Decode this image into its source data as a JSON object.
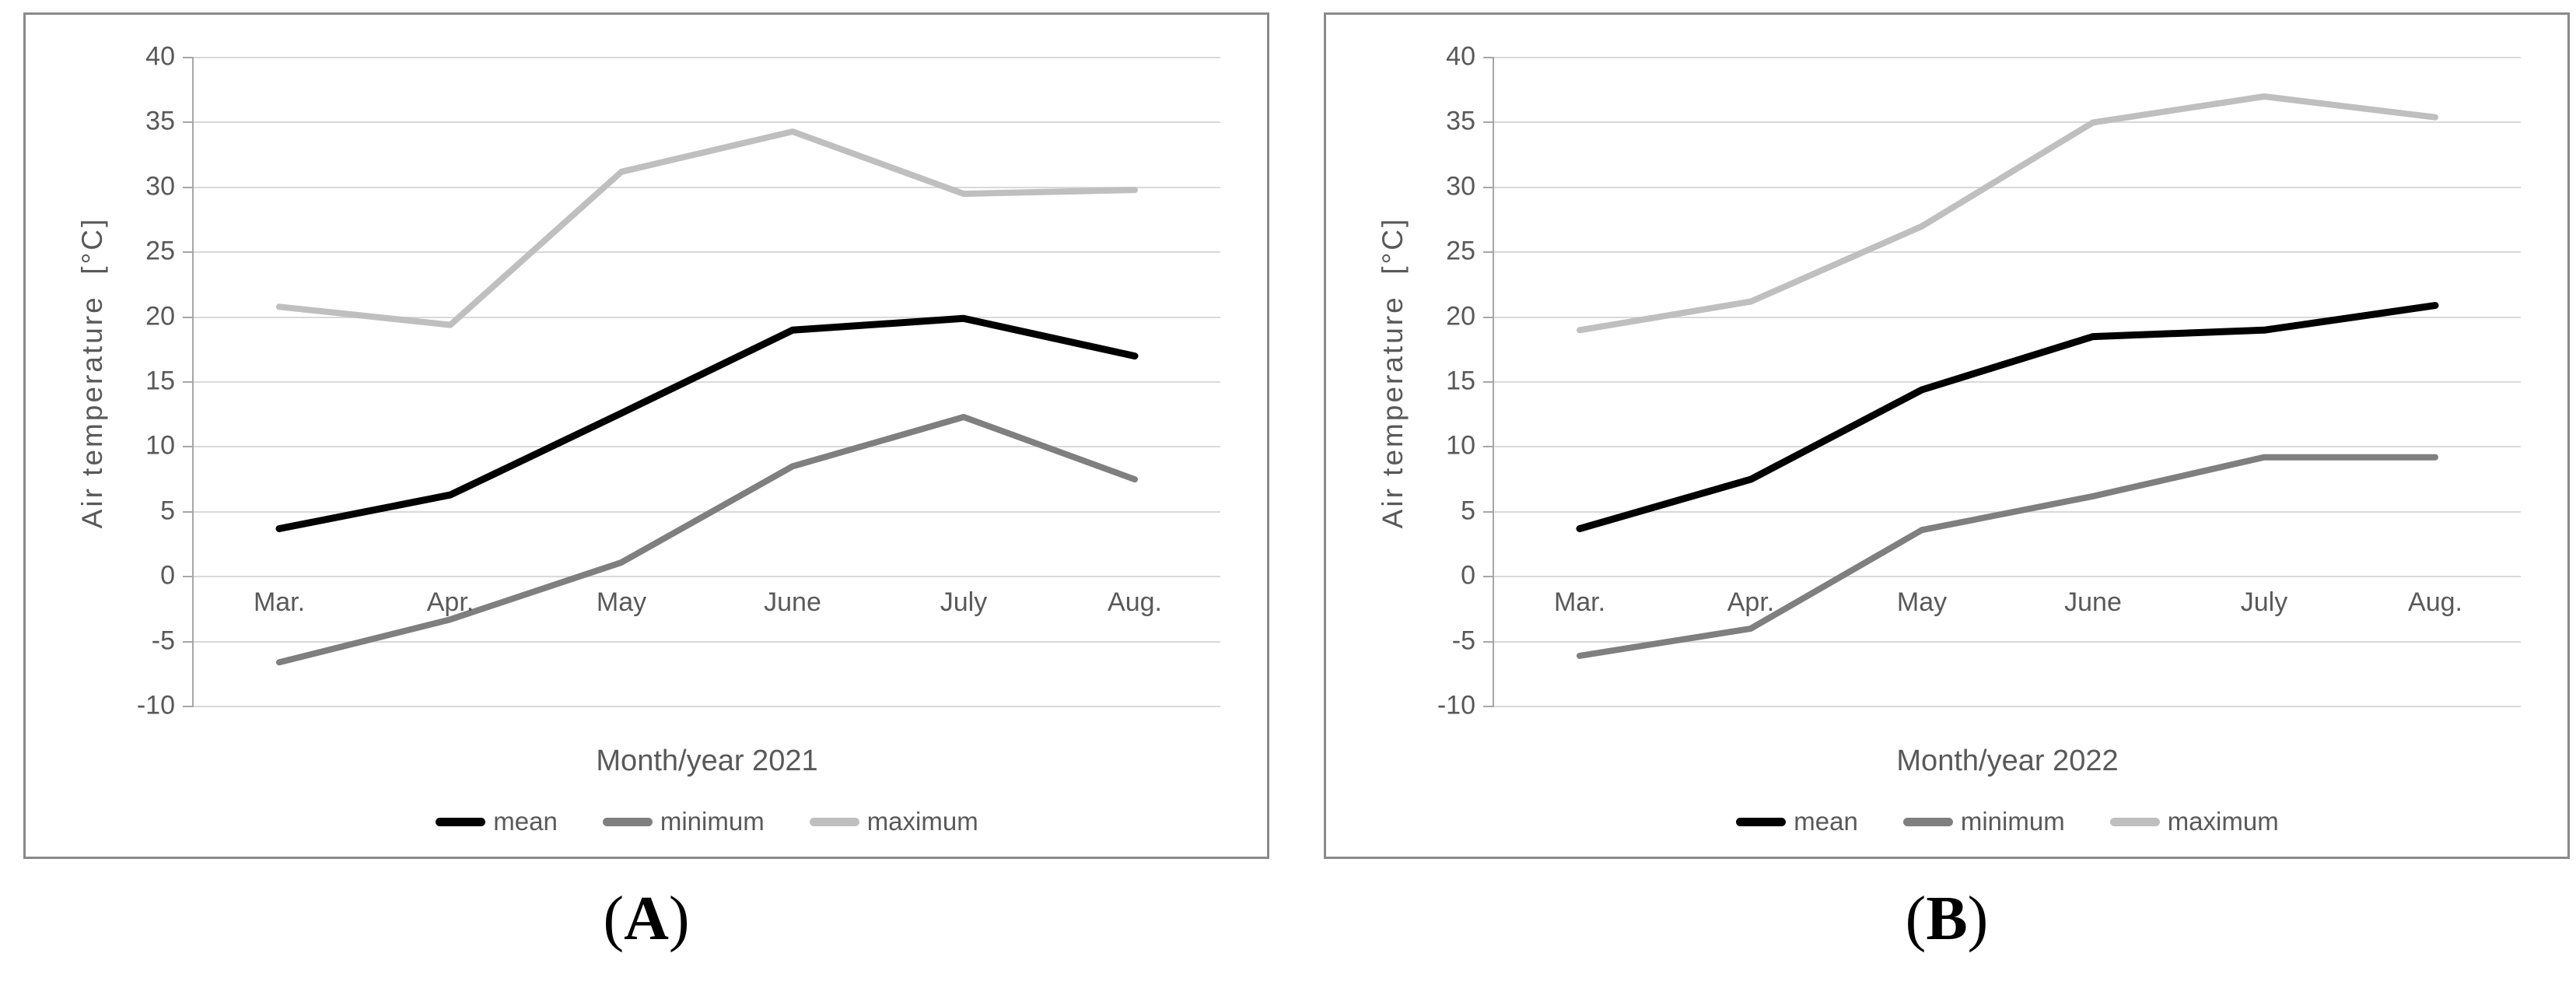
{
  "page": {
    "background": "#ffffff"
  },
  "colors": {
    "mean": "#000000",
    "minimum": "#7f7f7f",
    "maximum": "#bfbfbf",
    "gridline": "#d9d9d9",
    "axis_line": "#a6a6a6",
    "chart_text": "#595959",
    "panel_border": "#8a8a8a"
  },
  "chart_data": [
    {
      "type": "line",
      "title": "",
      "xlabel": "Month/year 2021",
      "ylabel": "Air temperature  [°C]",
      "categories": [
        "Mar.",
        "Apr.",
        "May",
        "June",
        "July",
        "Aug."
      ],
      "series": [
        {
          "name": "mean",
          "color": "#000000",
          "stroke_width": 9,
          "values": [
            3.7,
            6.3,
            12.6,
            19.0,
            19.9,
            17.0
          ]
        },
        {
          "name": "minimum",
          "color": "#7f7f7f",
          "stroke_width": 8,
          "values": [
            -6.6,
            -3.3,
            1.1,
            8.5,
            12.3,
            7.5
          ]
        },
        {
          "name": "maximum",
          "color": "#bfbfbf",
          "stroke_width": 8,
          "values": [
            20.8,
            19.4,
            31.2,
            34.3,
            29.5,
            29.8
          ]
        }
      ],
      "ylim": [
        -10,
        40
      ],
      "ytick_step": 5,
      "yticks": [
        40,
        35,
        30,
        25,
        20,
        15,
        10,
        5,
        0,
        -5,
        -10
      ],
      "grid": true,
      "legend_position": "bottom",
      "caption_open": "(",
      "caption_letter": "A",
      "caption_close": ")"
    },
    {
      "type": "line",
      "title": "",
      "xlabel": "Month/year 2022",
      "ylabel": "Air temperature  [°C]",
      "categories": [
        "Mar.",
        "Apr.",
        "May",
        "June",
        "July",
        "Aug."
      ],
      "series": [
        {
          "name": "mean",
          "color": "#000000",
          "stroke_width": 9,
          "values": [
            3.7,
            7.5,
            14.4,
            18.5,
            19.0,
            20.9
          ]
        },
        {
          "name": "minimum",
          "color": "#7f7f7f",
          "stroke_width": 8,
          "values": [
            -6.1,
            -4.0,
            3.6,
            6.2,
            9.2,
            9.2
          ]
        },
        {
          "name": "maximum",
          "color": "#bfbfbf",
          "stroke_width": 8,
          "values": [
            19.0,
            21.2,
            27.0,
            35.0,
            37.0,
            35.4
          ]
        }
      ],
      "ylim": [
        -10,
        40
      ],
      "ytick_step": 5,
      "yticks": [
        40,
        35,
        30,
        25,
        20,
        15,
        10,
        5,
        0,
        -5,
        -10
      ],
      "grid": true,
      "legend_position": "bottom",
      "caption_open": "(",
      "caption_letter": "B",
      "caption_close": ")"
    }
  ]
}
